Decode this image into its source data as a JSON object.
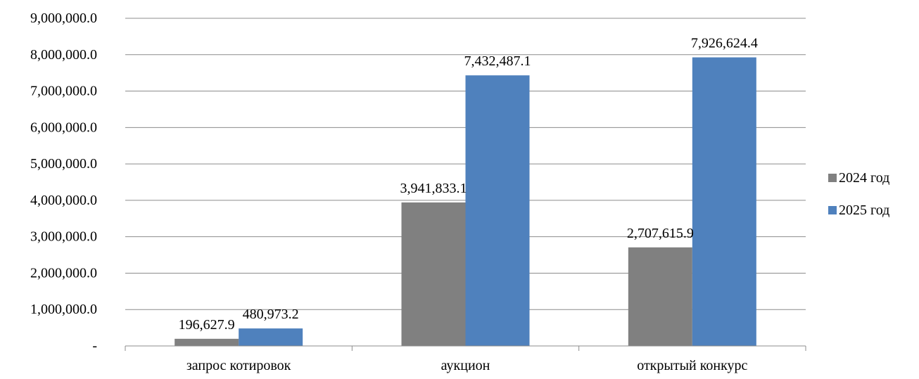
{
  "chart_data": {
    "type": "bar",
    "title": "",
    "xlabel": "",
    "ylabel": "",
    "categories": [
      "запрос котировок",
      "аукцион",
      "открытый конкурс"
    ],
    "series": [
      {
        "name": "2024 год",
        "color": "#808080",
        "values": [
          196627.9,
          3941833.1,
          2707615.9
        ],
        "labels": [
          "196,627.9",
          "3,941,833.1",
          "2,707,615.9"
        ]
      },
      {
        "name": "2025 год",
        "color": "#4f81bd",
        "values": [
          480973.2,
          7432487.1,
          7926624.4
        ],
        "labels": [
          "480,973.2",
          "7,432,487.1",
          "7,926,624.4"
        ]
      }
    ],
    "ylim": [
      0,
      9000000
    ],
    "yticks": [
      {
        "value": 0,
        "label": "-"
      },
      {
        "value": 1000000,
        "label": "1,000,000.0"
      },
      {
        "value": 2000000,
        "label": "2,000,000.0"
      },
      {
        "value": 3000000,
        "label": "3,000,000.0"
      },
      {
        "value": 4000000,
        "label": "4,000,000.0"
      },
      {
        "value": 5000000,
        "label": "5,000,000.0"
      },
      {
        "value": 6000000,
        "label": "6,000,000.0"
      },
      {
        "value": 7000000,
        "label": "7,000,000.0"
      },
      {
        "value": 8000000,
        "label": "8,000,000.0"
      },
      {
        "value": 9000000,
        "label": "9,000,000.0"
      }
    ],
    "grid": true,
    "legend_position": "right"
  }
}
